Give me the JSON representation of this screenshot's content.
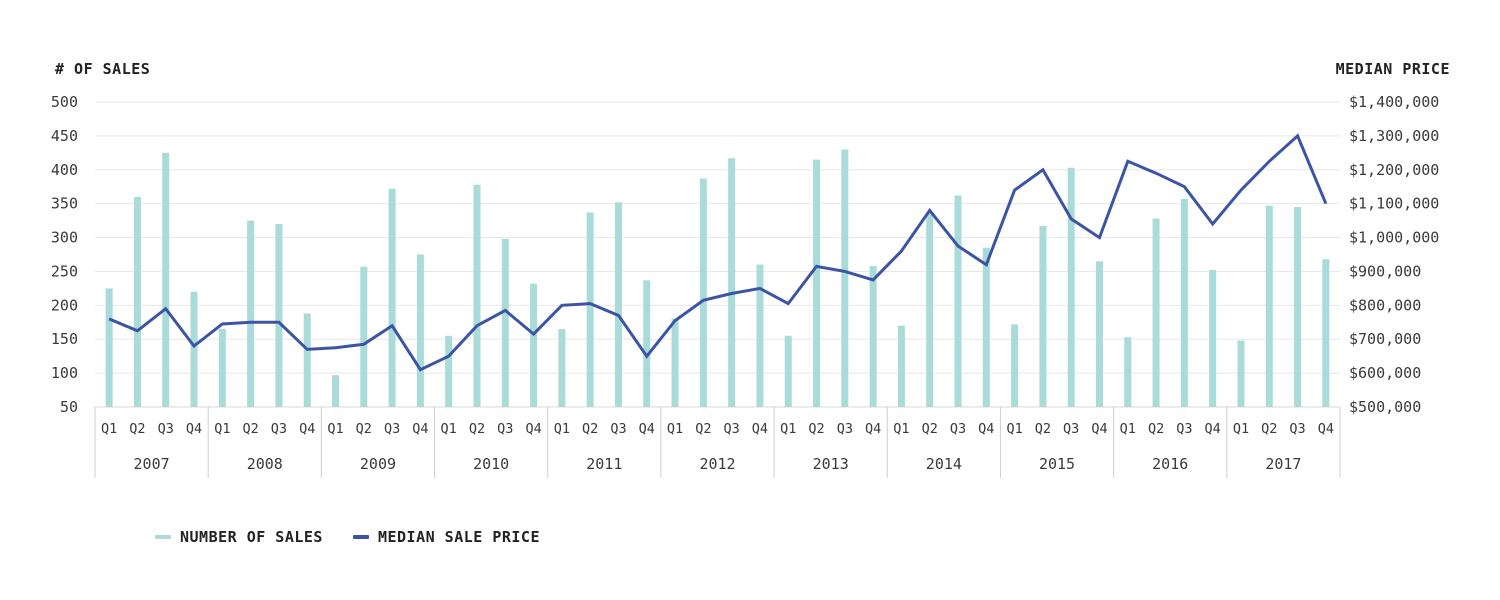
{
  "header": {
    "left_axis_title": "# OF SALES",
    "right_axis_title": "MEDIAN PRICE"
  },
  "legend": [
    {
      "label": "NUMBER OF SALES",
      "color": "#a9dbd8"
    },
    {
      "label": "MEDIAN SALE PRICE",
      "color": "#3b55a4"
    }
  ],
  "colors": {
    "bar": "#a9dbd8",
    "line": "#3b55a4",
    "grid": "#e8e8e8",
    "axis": "#d8d8d8",
    "separator": "#cfcfcf",
    "text": "#3a3a3a"
  },
  "chart_data": {
    "type": "combo",
    "subtypes": [
      "bar",
      "line"
    ],
    "grid": true,
    "legend_position": "bottom-left",
    "years": [
      "2007",
      "2008",
      "2009",
      "2010",
      "2011",
      "2012",
      "2013",
      "2014",
      "2015",
      "2016",
      "2017"
    ],
    "quarter_labels": [
      "Q1",
      "Q2",
      "Q3",
      "Q4"
    ],
    "left_axis": {
      "title": "# OF SALES",
      "min": 50,
      "max": 500,
      "step": 50,
      "ticks": [
        500,
        450,
        400,
        350,
        300,
        250,
        200,
        150,
        100,
        50
      ]
    },
    "right_axis": {
      "title": "MEDIAN PRICE",
      "min": 500000,
      "max": 1400000,
      "step": 100000,
      "tick_labels": [
        "$1,400,000",
        "$1,300,000",
        "$1,200,000",
        "$1,100,000",
        "$1,000,000",
        "$900,000",
        "$800,000",
        "$700,000",
        "$600,000",
        "$500,000"
      ]
    },
    "series": [
      {
        "name": "NUMBER OF SALES",
        "type": "bar",
        "axis": "left",
        "color": "#a9dbd8",
        "values": [
          225,
          360,
          425,
          220,
          165,
          325,
          320,
          188,
          97,
          257,
          372,
          275,
          155,
          378,
          298,
          232,
          165,
          337,
          352,
          237,
          180,
          387,
          417,
          260,
          155,
          415,
          430,
          258,
          170,
          335,
          362,
          285,
          172,
          317,
          403,
          265,
          153,
          328,
          357,
          252,
          148,
          347,
          345,
          268
        ]
      },
      {
        "name": "MEDIAN SALE PRICE",
        "type": "line",
        "axis": "right",
        "color": "#3b55a4",
        "values": [
          760000,
          725000,
          790000,
          680000,
          745000,
          750000,
          750000,
          670000,
          675000,
          685000,
          740000,
          610000,
          650000,
          740000,
          785000,
          715000,
          800000,
          805000,
          770000,
          650000,
          755000,
          815000,
          835000,
          850000,
          805000,
          915000,
          900000,
          875000,
          960000,
          1080000,
          975000,
          920000,
          1140000,
          1200000,
          1055000,
          1000000,
          1225000,
          1190000,
          1150000,
          1040000,
          1140000,
          1225000,
          1300000,
          1100000
        ]
      }
    ]
  }
}
